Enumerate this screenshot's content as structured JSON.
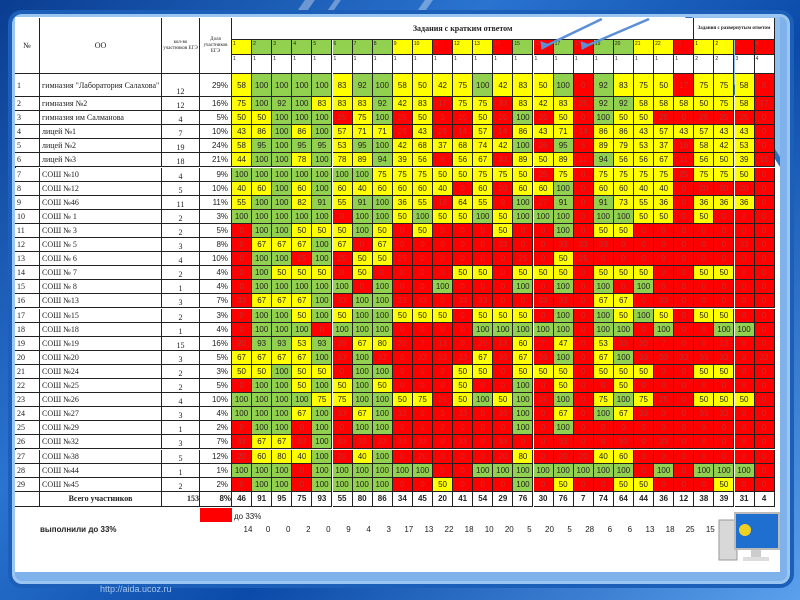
{
  "header": {
    "num_col": "№",
    "school_col": "ОО",
    "count_col": "кол-во участников ЕГЭ",
    "share_col": "Доля участников ЕГЭ",
    "short_group": "Задания с кратким ответом",
    "long_group": "Задания с развернутым ответом",
    "tasks": [
      "1",
      "2",
      "3",
      "4",
      "5",
      "6",
      "7",
      "8",
      "9",
      "10",
      "11",
      "12",
      "13",
      "14",
      "15",
      "16",
      "17",
      "18",
      "19",
      "20",
      "21",
      "22",
      "23",
      "1",
      "2",
      "3",
      "4"
    ],
    "points": [
      "1",
      "1",
      "1",
      "1",
      "1",
      "1",
      "1",
      "1",
      "1",
      "1",
      "1",
      "1",
      "1",
      "1",
      "1",
      "1",
      "1",
      "1",
      "1",
      "1",
      "1",
      "1",
      "1",
      "2",
      "2",
      "3",
      "4"
    ],
    "task_colors": [
      "yellow",
      "green",
      "green",
      "green",
      "green",
      "green",
      "green",
      "green",
      "yellow",
      "yellow",
      "red",
      "yellow",
      "yellow",
      "red",
      "green",
      "red",
      "green",
      "red",
      "green",
      "green",
      "yellow",
      "yellow",
      "red",
      "yellow",
      "yellow",
      "red",
      "red"
    ]
  },
  "rows": [
    {
      "n": "1",
      "school": "гимназия \"Лаборатория Салахова\"",
      "count": "12",
      "share": "29%",
      "values": [
        58,
        100,
        100,
        100,
        100,
        83,
        92,
        100,
        58,
        50,
        42,
        75,
        100,
        42,
        83,
        50,
        100,
        0,
        92,
        83,
        75,
        50,
        17,
        75,
        75,
        58,
        8
      ]
    },
    {
      "n": "2",
      "school": "гимназия №2",
      "count": "12",
      "share": "16%",
      "values": [
        75,
        100,
        92,
        100,
        83,
        83,
        83,
        92,
        42,
        83,
        17,
        75,
        75,
        33,
        83,
        42,
        83,
        25,
        92,
        92,
        58,
        58,
        58,
        50,
        75,
        58,
        17
      ]
    },
    {
      "n": "3",
      "school": "гимназия им Салманова",
      "count": "4",
      "share": "5%",
      "values": [
        50,
        50,
        100,
        100,
        100,
        25,
        75,
        100,
        25,
        50,
        0,
        25,
        50,
        25,
        100,
        25,
        50,
        0,
        100,
        50,
        50,
        25,
        0,
        25,
        25,
        25,
        0
      ]
    },
    {
      "n": "4",
      "school": "лицей №1",
      "count": "7",
      "share": "10%",
      "values": [
        43,
        86,
        100,
        86,
        100,
        57,
        71,
        71,
        29,
        43,
        29,
        14,
        57,
        14,
        86,
        43,
        71,
        14,
        86,
        86,
        43,
        57,
        43,
        57,
        43,
        43,
        0
      ]
    },
    {
      "n": "5",
      "school": "лицей №2",
      "count": "19",
      "share": "24%",
      "values": [
        58,
        95,
        100,
        95,
        95,
        53,
        95,
        100,
        42,
        68,
        37,
        68,
        74,
        42,
        100,
        26,
        95,
        5,
        89,
        79,
        53,
        37,
        16,
        58,
        42,
        53,
        0
      ]
    },
    {
      "n": "6",
      "school": "лицей №3",
      "count": "18",
      "share": "21%",
      "values": [
        44,
        100,
        100,
        78,
        100,
        78,
        89,
        94,
        39,
        56,
        6,
        56,
        67,
        33,
        89,
        50,
        89,
        11,
        94,
        56,
        56,
        67,
        11,
        56,
        50,
        39,
        11
      ]
    },
    {
      "n": "7",
      "school": "СОШ №10",
      "count": "4",
      "share": "9%",
      "values": [
        100,
        100,
        100,
        100,
        100,
        100,
        100,
        75,
        75,
        75,
        50,
        50,
        75,
        75,
        50,
        25,
        75,
        0,
        75,
        75,
        75,
        75,
        25,
        75,
        75,
        50,
        0
      ]
    },
    {
      "n": "8",
      "school": "СОШ №12",
      "count": "5",
      "share": "10%",
      "values": [
        40,
        60,
        100,
        60,
        100,
        60,
        40,
        60,
        60,
        60,
        40,
        0,
        60,
        20,
        60,
        60,
        100,
        0,
        60,
        60,
        40,
        40,
        0,
        20,
        20,
        20,
        0
      ]
    },
    {
      "n": "9",
      "school": "СОШ №46",
      "count": "11",
      "share": "11%",
      "values": [
        55,
        100,
        100,
        82,
        91,
        55,
        91,
        100,
        36,
        55,
        18,
        64,
        55,
        9,
        100,
        27,
        91,
        0,
        91,
        73,
        55,
        36,
        0,
        36,
        36,
        36,
        0
      ]
    },
    {
      "n": "10",
      "school": "СОШ № 1",
      "count": "2",
      "share": "3%",
      "values": [
        100,
        100,
        100,
        100,
        100,
        0,
        100,
        100,
        50,
        100,
        50,
        50,
        100,
        50,
        100,
        100,
        100,
        0,
        100,
        100,
        50,
        50,
        0,
        50,
        0,
        0,
        0
      ]
    },
    {
      "n": "11",
      "school": "СОШ № 3",
      "count": "2",
      "share": "5%",
      "values": [
        0,
        100,
        100,
        50,
        50,
        50,
        100,
        50,
        0,
        50,
        0,
        0,
        0,
        50,
        0,
        0,
        100,
        0,
        50,
        50,
        0,
        0,
        0,
        0,
        0,
        0,
        0
      ]
    },
    {
      "n": "12",
      "school": "СОШ № 5",
      "count": "3",
      "share": "8%",
      "values": [
        0,
        67,
        67,
        67,
        100,
        67,
        0,
        67,
        0,
        0,
        0,
        0,
        0,
        33,
        0,
        0,
        33,
        33,
        33,
        0,
        0,
        0,
        0,
        0,
        0,
        33,
        0
      ]
    },
    {
      "n": "13",
      "school": "СОШ № 6",
      "count": "4",
      "share": "10%",
      "values": [
        0,
        100,
        100,
        25,
        100,
        25,
        50,
        50,
        25,
        0,
        0,
        0,
        0,
        0,
        25,
        0,
        50,
        25,
        0,
        0,
        0,
        0,
        0,
        0,
        0,
        0,
        0
      ]
    },
    {
      "n": "14",
      "school": "СОШ № 7",
      "count": "2",
      "share": "4%",
      "values": [
        0,
        100,
        50,
        50,
        50,
        0,
        50,
        0,
        0,
        0,
        0,
        50,
        50,
        0,
        50,
        50,
        50,
        0,
        50,
        50,
        50,
        0,
        0,
        50,
        50,
        0,
        0
      ]
    },
    {
      "n": "15",
      "school": "СОШ № 8",
      "count": "1",
      "share": "4%",
      "values": [
        0,
        100,
        100,
        100,
        100,
        100,
        0,
        100,
        0,
        0,
        100,
        0,
        0,
        0,
        100,
        0,
        100,
        0,
        100,
        0,
        100,
        0,
        0,
        0,
        0,
        0,
        0
      ]
    },
    {
      "n": "16",
      "school": "СОШ №13",
      "count": "3",
      "share": "7%",
      "values": [
        33,
        67,
        67,
        67,
        100,
        33,
        100,
        100,
        33,
        33,
        0,
        33,
        33,
        0,
        0,
        33,
        33,
        0,
        67,
        67,
        0,
        33,
        0,
        0,
        0,
        0,
        0
      ]
    },
    {
      "n": "17",
      "school": "СОШ №15",
      "count": "2",
      "share": "3%",
      "values": [
        0,
        100,
        100,
        50,
        100,
        50,
        100,
        100,
        50,
        50,
        50,
        0,
        50,
        50,
        50,
        0,
        100,
        0,
        100,
        50,
        100,
        50,
        0,
        50,
        50,
        0,
        0
      ]
    },
    {
      "n": "18",
      "school": "СОШ №18",
      "count": "1",
      "share": "4%",
      "values": [
        0,
        100,
        100,
        100,
        0,
        100,
        100,
        100,
        0,
        0,
        0,
        0,
        100,
        100,
        100,
        100,
        100,
        0,
        100,
        100,
        0,
        100,
        0,
        0,
        100,
        100,
        0
      ]
    },
    {
      "n": "19",
      "school": "СОШ №19",
      "count": "15",
      "share": "16%",
      "values": [
        20,
        93,
        93,
        53,
        93,
        20,
        67,
        80,
        20,
        7,
        13,
        0,
        20,
        13,
        60,
        7,
        47,
        0,
        53,
        33,
        20,
        7,
        0,
        0,
        13,
        0,
        0
      ]
    },
    {
      "n": "20",
      "school": "СОШ №20",
      "count": "3",
      "share": "5%",
      "values": [
        67,
        67,
        67,
        67,
        100,
        33,
        100,
        33,
        0,
        33,
        33,
        33,
        67,
        33,
        67,
        33,
        100,
        0,
        67,
        100,
        33,
        33,
        33,
        33,
        33,
        0,
        33
      ]
    },
    {
      "n": "21",
      "school": "СОШ №24",
      "count": "2",
      "share": "3%",
      "values": [
        50,
        50,
        100,
        50,
        50,
        0,
        100,
        100,
        0,
        0,
        0,
        50,
        50,
        0,
        50,
        50,
        50,
        0,
        50,
        50,
        50,
        0,
        0,
        50,
        50,
        0,
        0
      ]
    },
    {
      "n": "22",
      "school": "СОШ №25",
      "count": "2",
      "share": "5%",
      "values": [
        0,
        100,
        100,
        50,
        100,
        50,
        100,
        50,
        0,
        0,
        0,
        50,
        0,
        0,
        100,
        0,
        50,
        0,
        0,
        50,
        0,
        0,
        0,
        0,
        0,
        0,
        0
      ]
    },
    {
      "n": "23",
      "school": "СОШ №26",
      "count": "4",
      "share": "10%",
      "values": [
        100,
        100,
        100,
        100,
        75,
        75,
        100,
        100,
        50,
        75,
        25,
        50,
        100,
        50,
        100,
        25,
        100,
        0,
        75,
        100,
        75,
        25,
        0,
        50,
        50,
        50,
        0
      ]
    },
    {
      "n": "24",
      "school": "СОШ №27",
      "count": "3",
      "share": "4%",
      "values": [
        100,
        100,
        100,
        67,
        100,
        33,
        67,
        100,
        33,
        0,
        0,
        33,
        0,
        33,
        100,
        0,
        67,
        0,
        100,
        67,
        33,
        0,
        0,
        33,
        33,
        0,
        0
      ]
    },
    {
      "n": "25",
      "school": "СОШ №29",
      "count": "1",
      "share": "2%",
      "values": [
        0,
        100,
        100,
        0,
        100,
        0,
        100,
        100,
        0,
        0,
        0,
        0,
        0,
        0,
        100,
        0,
        100,
        0,
        0,
        0,
        0,
        0,
        0,
        0,
        0,
        0,
        0
      ]
    },
    {
      "n": "26",
      "school": "СОШ №32",
      "count": "3",
      "share": "7%",
      "values": [
        33,
        67,
        67,
        33,
        100,
        33,
        33,
        33,
        33,
        33,
        0,
        33,
        0,
        33,
        0,
        0,
        33,
        0,
        0,
        33,
        0,
        33,
        0,
        0,
        0,
        0,
        0
      ]
    },
    {
      "n": "27",
      "school": "СОШ №38",
      "count": "5",
      "share": "12%",
      "values": [
        20,
        60,
        80,
        40,
        100,
        20,
        40,
        100,
        0,
        20,
        0,
        0,
        0,
        20,
        80,
        0,
        20,
        20,
        40,
        60,
        0,
        0,
        0,
        0,
        0,
        0,
        0
      ]
    },
    {
      "n": "28",
      "school": "СОШ №44",
      "count": "1",
      "share": "1%",
      "values": [
        100,
        100,
        100,
        0,
        100,
        100,
        100,
        100,
        100,
        100,
        0,
        0,
        100,
        100,
        100,
        100,
        100,
        100,
        100,
        100,
        0,
        100,
        0,
        100,
        100,
        100,
        0
      ]
    },
    {
      "n": "29",
      "school": "СОШ №45",
      "count": "2",
      "share": "2%",
      "values": [
        0,
        100,
        100,
        0,
        100,
        100,
        100,
        100,
        0,
        0,
        50,
        0,
        0,
        0,
        100,
        0,
        50,
        0,
        0,
        50,
        50,
        0,
        0,
        0,
        50,
        0,
        0
      ]
    }
  ],
  "total": {
    "label": "Всего участников",
    "count": "153",
    "share": "8%",
    "values": [
      46,
      91,
      95,
      75,
      93,
      55,
      80,
      86,
      34,
      45,
      20,
      41,
      54,
      29,
      76,
      30,
      76,
      7,
      74,
      64,
      44,
      36,
      12,
      38,
      39,
      31,
      4
    ]
  },
  "legend": {
    "label": "до 33%",
    "color": "#ff0000"
  },
  "below33": {
    "label": "выполнили до 33%",
    "values": [
      14,
      0,
      0,
      2,
      0,
      9,
      4,
      3,
      17,
      13,
      22,
      18,
      10,
      20,
      5,
      20,
      5,
      28,
      6,
      6,
      13,
      18,
      25,
      15,
      11,
      19,
      28
    ]
  },
  "footer_url": "http://aida.ucoz.ru",
  "colors": {
    "red": "#ff0000",
    "yellow": "#ffff00",
    "green": "#92d050",
    "frame": "#1c5fb8"
  }
}
